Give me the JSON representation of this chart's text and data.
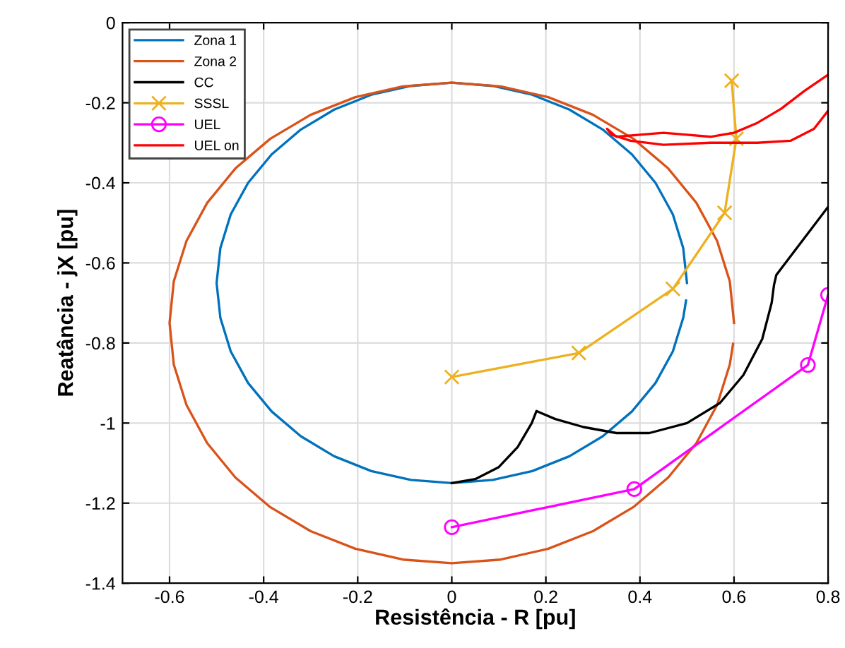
{
  "chart_data": {
    "type": "line",
    "xlabel": "Resistência - R [pu]",
    "ylabel": "Reatância - jX [pu]",
    "xlim": [
      -0.7,
      0.8
    ],
    "xticks": [
      -0.6,
      -0.4,
      -0.2,
      0,
      0.2,
      0.4,
      0.6,
      0.8
    ],
    "ylim": [
      -1.4,
      0
    ],
    "yticks": [
      -1.4,
      -1.2,
      -1,
      -0.8,
      -0.6,
      -0.4,
      -0.2,
      0
    ],
    "grid": true,
    "legend": "top left",
    "series": [
      {
        "name": "Zona 1",
        "color": "#0072bd",
        "marker": "none",
        "x": [
          0.5,
          0.492,
          0.47,
          0.433,
          0.383,
          0.321,
          0.25,
          0.171,
          0.087,
          0,
          -0.087,
          -0.171,
          -0.25,
          -0.321,
          -0.383,
          -0.433,
          -0.47,
          -0.492,
          -0.5,
          -0.492,
          -0.47,
          -0.433,
          -0.383,
          -0.321,
          -0.25,
          -0.171,
          -0.087,
          0,
          0.087,
          0.171,
          0.25,
          0.321,
          0.383,
          0.433,
          0.47,
          0.492,
          0.498
        ],
        "values": [
          -0.65,
          -0.563,
          -0.479,
          -0.4,
          -0.329,
          -0.267,
          -0.217,
          -0.18,
          -0.158,
          -0.15,
          -0.158,
          -0.18,
          -0.217,
          -0.267,
          -0.329,
          -0.4,
          -0.479,
          -0.563,
          -0.65,
          -0.737,
          -0.821,
          -0.9,
          -0.971,
          -1.033,
          -1.083,
          -1.12,
          -1.142,
          -1.15,
          -1.142,
          -1.12,
          -1.083,
          -1.033,
          -0.971,
          -0.9,
          -0.821,
          -0.737,
          -0.694
        ]
      },
      {
        "name": "Zona 2",
        "color": "#d95319",
        "marker": "none",
        "x": [
          0.6,
          0.591,
          0.564,
          0.52,
          0.46,
          0.386,
          0.3,
          0.205,
          0.104,
          0,
          -0.104,
          -0.205,
          -0.3,
          -0.386,
          -0.46,
          -0.52,
          -0.564,
          -0.591,
          -0.6,
          -0.591,
          -0.564,
          -0.52,
          -0.46,
          -0.386,
          -0.3,
          -0.205,
          -0.104,
          0,
          0.104,
          0.205,
          0.3,
          0.386,
          0.46,
          0.52,
          0.564,
          0.591,
          0.598
        ],
        "values": [
          -0.75,
          -0.646,
          -0.545,
          -0.45,
          -0.364,
          -0.29,
          -0.23,
          -0.186,
          -0.159,
          -0.15,
          -0.159,
          -0.186,
          -0.23,
          -0.29,
          -0.364,
          -0.45,
          -0.545,
          -0.646,
          -0.75,
          -0.854,
          -0.955,
          -1.05,
          -1.136,
          -1.21,
          -1.27,
          -1.314,
          -1.341,
          -1.35,
          -1.341,
          -1.314,
          -1.27,
          -1.21,
          -1.136,
          -1.05,
          -0.955,
          -0.854,
          -0.802
        ]
      },
      {
        "name": "CC",
        "color": "#000000",
        "marker": "none",
        "x": [
          0,
          0.05,
          0.1,
          0.14,
          0.17,
          0.18,
          0.22,
          0.28,
          0.35,
          0.42,
          0.5,
          0.57,
          0.62,
          0.66,
          0.68,
          0.685,
          0.69,
          0.8
        ],
        "values": [
          -1.15,
          -1.14,
          -1.11,
          -1.06,
          -1.0,
          -0.97,
          -0.99,
          -1.01,
          -1.025,
          -1.025,
          -1.0,
          -0.95,
          -0.88,
          -0.79,
          -0.7,
          -0.655,
          -0.63,
          -0.46
        ]
      },
      {
        "name": "SSSL",
        "color": "#edb120",
        "marker": "cross",
        "x": [
          0,
          0.27,
          0.47,
          0.58,
          0.605,
          0.595
        ],
        "values": [
          -0.885,
          -0.825,
          -0.665,
          -0.475,
          -0.29,
          -0.145
        ]
      },
      {
        "name": "UEL",
        "color": "#ff00ff",
        "marker": "circle",
        "x": [
          0,
          0.388,
          0.757,
          0.8
        ],
        "values": [
          -1.26,
          -1.165,
          -0.855,
          -0.68
        ]
      },
      {
        "name": "UEL on",
        "color": "#ff0000",
        "marker": "none",
        "x": [
          0.8,
          0.75,
          0.7,
          0.65,
          0.6,
          0.55,
          0.5,
          0.45,
          0.4,
          0.35,
          0.33,
          0.34,
          0.38,
          0.45,
          0.55,
          0.65,
          0.72,
          0.77,
          0.8
        ],
        "values": [
          -0.13,
          -0.17,
          -0.215,
          -0.25,
          -0.275,
          -0.285,
          -0.28,
          -0.275,
          -0.28,
          -0.285,
          -0.265,
          -0.28,
          -0.295,
          -0.305,
          -0.3,
          -0.3,
          -0.295,
          -0.265,
          -0.22
        ]
      }
    ]
  }
}
